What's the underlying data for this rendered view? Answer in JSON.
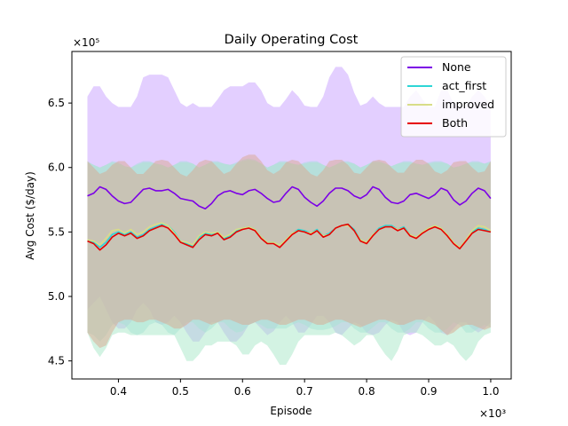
{
  "chart_data": {
    "type": "line",
    "title": "Daily Operating Cost",
    "xlabel": "Episode",
    "ylabel": "Avg Cost ($/day)",
    "x_multiplier_label": "×10³",
    "y_multiplier_label": "×10⁵",
    "xlim": [
      0.325,
      1.033
    ],
    "ylim": [
      4.36,
      6.9
    ],
    "x_ticks": [
      0.4,
      0.5,
      0.6,
      0.7,
      0.8,
      0.9,
      1.0
    ],
    "x_tick_labels": [
      "0.4",
      "0.5",
      "0.6",
      "0.7",
      "0.8",
      "0.9",
      "1.0"
    ],
    "y_ticks": [
      4.5,
      5.0,
      5.5,
      6.0,
      6.5
    ],
    "y_tick_labels": [
      "4.5",
      "5.0",
      "5.5",
      "6.0",
      "6.5"
    ],
    "legend_position": "top-right",
    "x": [
      0.35,
      0.36,
      0.37,
      0.38,
      0.39,
      0.4,
      0.41,
      0.42,
      0.43,
      0.44,
      0.45,
      0.46,
      0.47,
      0.48,
      0.49,
      0.5,
      0.51,
      0.52,
      0.53,
      0.54,
      0.55,
      0.56,
      0.57,
      0.58,
      0.59,
      0.6,
      0.61,
      0.62,
      0.63,
      0.64,
      0.65,
      0.66,
      0.67,
      0.68,
      0.69,
      0.7,
      0.71,
      0.72,
      0.73,
      0.74,
      0.75,
      0.76,
      0.77,
      0.78,
      0.79,
      0.8,
      0.81,
      0.82,
      0.83,
      0.84,
      0.85,
      0.86,
      0.87,
      0.88,
      0.89,
      0.9,
      0.91,
      0.92,
      0.93,
      0.94,
      0.95,
      0.96,
      0.97,
      0.98,
      0.99,
      1.0
    ],
    "series": [
      {
        "name": "None",
        "color": "#7b00e6",
        "fill": "#c8a0ff",
        "values": [
          5.78,
          5.8,
          5.85,
          5.83,
          5.78,
          5.74,
          5.72,
          5.73,
          5.78,
          5.83,
          5.84,
          5.82,
          5.82,
          5.83,
          5.8,
          5.76,
          5.75,
          5.74,
          5.7,
          5.68,
          5.72,
          5.78,
          5.81,
          5.82,
          5.8,
          5.79,
          5.82,
          5.83,
          5.8,
          5.76,
          5.73,
          5.74,
          5.8,
          5.85,
          5.83,
          5.77,
          5.73,
          5.7,
          5.74,
          5.8,
          5.84,
          5.84,
          5.82,
          5.78,
          5.76,
          5.79,
          5.85,
          5.83,
          5.77,
          5.73,
          5.72,
          5.74,
          5.79,
          5.8,
          5.78,
          5.76,
          5.79,
          5.84,
          5.82,
          5.75,
          5.71,
          5.74,
          5.8,
          5.84,
          5.82,
          5.76
        ],
        "upper": [
          6.55,
          6.63,
          6.63,
          6.55,
          6.5,
          6.47,
          6.47,
          6.47,
          6.55,
          6.7,
          6.72,
          6.72,
          6.72,
          6.7,
          6.6,
          6.5,
          6.47,
          6.5,
          6.47,
          6.47,
          6.47,
          6.53,
          6.6,
          6.63,
          6.63,
          6.63,
          6.66,
          6.66,
          6.6,
          6.5,
          6.47,
          6.47,
          6.53,
          6.6,
          6.55,
          6.48,
          6.47,
          6.47,
          6.55,
          6.7,
          6.78,
          6.78,
          6.72,
          6.58,
          6.48,
          6.5,
          6.55,
          6.5,
          6.47,
          6.47,
          6.47,
          6.47,
          6.55,
          6.6,
          6.53,
          6.47,
          6.47,
          6.6,
          6.6,
          6.5,
          6.47,
          6.47,
          6.55,
          6.6,
          6.55,
          6.47
        ],
        "lower": [
          4.9,
          4.95,
          5.0,
          4.9,
          4.8,
          4.75,
          4.75,
          4.8,
          4.9,
          4.95,
          4.9,
          4.8,
          4.78,
          4.8,
          4.85,
          4.8,
          4.72,
          4.65,
          4.65,
          4.72,
          4.8,
          4.8,
          4.72,
          4.65,
          4.65,
          4.7,
          4.78,
          4.8,
          4.75,
          4.7,
          4.73,
          4.8,
          4.85,
          4.8,
          4.72,
          4.72,
          4.78,
          4.85,
          4.85,
          4.8,
          4.72,
          4.7,
          4.75,
          4.8,
          4.78,
          4.72,
          4.7,
          4.72,
          4.78,
          4.82,
          4.8,
          4.72,
          4.7,
          4.72,
          4.8,
          4.85,
          4.8,
          4.72,
          4.7,
          4.75,
          4.8,
          4.8,
          4.75,
          4.72,
          4.75,
          4.8
        ]
      },
      {
        "name": "act_first",
        "color": "#2ed6d6",
        "fill": "#a6dede",
        "values": [
          5.43,
          5.42,
          5.38,
          5.42,
          5.48,
          5.5,
          5.48,
          5.5,
          5.46,
          5.48,
          5.52,
          5.54,
          5.56,
          5.55,
          5.5,
          5.43,
          5.41,
          5.39,
          5.46,
          5.49,
          5.48,
          5.5,
          5.45,
          5.47,
          5.51,
          5.53,
          5.54,
          5.52,
          5.46,
          5.42,
          5.42,
          5.4,
          5.44,
          5.49,
          5.52,
          5.51,
          5.49,
          5.52,
          5.47,
          5.49,
          5.53,
          5.55,
          5.56,
          5.52,
          5.44,
          5.42,
          5.48,
          5.53,
          5.55,
          5.55,
          5.52,
          5.54,
          5.48,
          5.46,
          5.5,
          5.53,
          5.55,
          5.53,
          5.48,
          5.42,
          5.38,
          5.44,
          5.5,
          5.53,
          5.52,
          5.5
        ],
        "upper": [
          6.05,
          6.02,
          6.0,
          6.02,
          6.05,
          6.04,
          6.01,
          6.0,
          6.03,
          6.05,
          6.05,
          6.03,
          6.02,
          6.0,
          6.02,
          6.05,
          6.05,
          6.03,
          6.0,
          6.02,
          6.05,
          6.05,
          6.03,
          6.02,
          6.04,
          6.06,
          6.07,
          6.06,
          6.03,
          6.0,
          6.02,
          6.05,
          6.05,
          6.03,
          6.02,
          6.04,
          6.05,
          6.05,
          6.02,
          6.0,
          6.02,
          6.05,
          6.05,
          6.03,
          6.0,
          6.02,
          6.05,
          6.05,
          6.03,
          6.01,
          6.03,
          6.05,
          6.05,
          6.03,
          6.02,
          6.04,
          6.05,
          6.05,
          6.03,
          6.0,
          6.01,
          6.03,
          6.05,
          6.05,
          6.03,
          6.05
        ],
        "lower": [
          4.72,
          4.7,
          4.65,
          4.7,
          4.78,
          4.8,
          4.78,
          4.72,
          4.7,
          4.72,
          4.78,
          4.8,
          4.78,
          4.72,
          4.7,
          4.75,
          4.8,
          4.8,
          4.75,
          4.72,
          4.75,
          4.8,
          4.8,
          4.75,
          4.72,
          4.73,
          4.78,
          4.8,
          4.78,
          4.75,
          4.75,
          4.75,
          4.75,
          4.78,
          4.8,
          4.78,
          4.75,
          4.74,
          4.74,
          4.75,
          4.77,
          4.8,
          4.8,
          4.75,
          4.72,
          4.72,
          4.76,
          4.8,
          4.8,
          4.75,
          4.72,
          4.72,
          4.75,
          4.8,
          4.8,
          4.75,
          4.72,
          4.72,
          4.75,
          4.8,
          4.78,
          4.72,
          4.72,
          4.75,
          4.78,
          4.76
        ]
      },
      {
        "name": "improved",
        "color": "#d8dd88",
        "fill": "#a8e8c8",
        "values": [
          5.44,
          5.43,
          5.4,
          5.45,
          5.51,
          5.52,
          5.49,
          5.52,
          5.48,
          5.5,
          5.54,
          5.56,
          5.57,
          5.55,
          5.49,
          5.43,
          5.42,
          5.4,
          5.47,
          5.5,
          5.49,
          5.5,
          5.46,
          5.48,
          5.52,
          5.53,
          5.54,
          5.52,
          5.46,
          5.42,
          5.42,
          5.4,
          5.44,
          5.49,
          5.51,
          5.5,
          5.49,
          5.51,
          5.47,
          5.48,
          5.53,
          5.55,
          5.55,
          5.51,
          5.44,
          5.42,
          5.48,
          5.52,
          5.54,
          5.54,
          5.52,
          5.53,
          5.48,
          5.46,
          5.5,
          5.53,
          5.55,
          5.53,
          5.48,
          5.42,
          5.38,
          5.44,
          5.51,
          5.55,
          5.54,
          5.51
        ],
        "upper": [
          6.04,
          6.02,
          6.0,
          6.02,
          6.04,
          6.03,
          6.01,
          6.0,
          6.02,
          6.04,
          6.04,
          6.03,
          6.02,
          6.0,
          6.02,
          6.04,
          6.04,
          6.03,
          6.0,
          6.02,
          6.04,
          6.04,
          6.03,
          6.02,
          6.03,
          6.05,
          6.06,
          6.05,
          6.03,
          6.0,
          6.02,
          6.04,
          6.04,
          6.03,
          6.02,
          6.03,
          6.04,
          6.04,
          6.02,
          6.0,
          6.02,
          6.04,
          6.04,
          6.03,
          6.0,
          6.02,
          6.04,
          6.04,
          6.03,
          6.01,
          6.03,
          6.04,
          6.04,
          6.03,
          6.02,
          6.03,
          6.04,
          6.04,
          6.03,
          6.0,
          6.01,
          6.03,
          6.04,
          6.04,
          6.03,
          6.04
        ],
        "lower": [
          4.72,
          4.6,
          4.53,
          4.6,
          4.7,
          4.72,
          4.72,
          4.7,
          4.7,
          4.7,
          4.7,
          4.7,
          4.7,
          4.7,
          4.7,
          4.6,
          4.5,
          4.5,
          4.55,
          4.62,
          4.62,
          4.65,
          4.65,
          4.65,
          4.62,
          4.55,
          4.55,
          4.62,
          4.65,
          4.62,
          4.55,
          4.47,
          4.47,
          4.55,
          4.65,
          4.7,
          4.7,
          4.7,
          4.7,
          4.7,
          4.72,
          4.7,
          4.66,
          4.62,
          4.65,
          4.7,
          4.7,
          4.62,
          4.55,
          4.5,
          4.58,
          4.7,
          4.72,
          4.72,
          4.7,
          4.66,
          4.62,
          4.62,
          4.65,
          4.62,
          4.55,
          4.5,
          4.55,
          4.65,
          4.7,
          4.72
        ]
      },
      {
        "name": "Both",
        "color": "#e60000",
        "fill": "#d9a890",
        "values": [
          5.43,
          5.41,
          5.36,
          5.4,
          5.46,
          5.49,
          5.47,
          5.49,
          5.45,
          5.47,
          5.51,
          5.53,
          5.55,
          5.53,
          5.48,
          5.42,
          5.4,
          5.38,
          5.44,
          5.48,
          5.47,
          5.49,
          5.44,
          5.46,
          5.5,
          5.52,
          5.53,
          5.51,
          5.45,
          5.41,
          5.41,
          5.38,
          5.43,
          5.48,
          5.51,
          5.5,
          5.48,
          5.51,
          5.46,
          5.48,
          5.53,
          5.55,
          5.56,
          5.51,
          5.43,
          5.41,
          5.47,
          5.52,
          5.54,
          5.54,
          5.51,
          5.53,
          5.47,
          5.45,
          5.49,
          5.52,
          5.54,
          5.52,
          5.47,
          5.41,
          5.37,
          5.43,
          5.49,
          5.52,
          5.51,
          5.5
        ],
        "upper": [
          6.05,
          6.0,
          5.95,
          5.97,
          6.02,
          6.05,
          6.05,
          6.0,
          5.95,
          5.95,
          6.0,
          6.05,
          6.06,
          6.05,
          6.0,
          5.95,
          5.93,
          5.98,
          6.04,
          6.06,
          6.05,
          6.0,
          5.95,
          5.97,
          6.03,
          6.08,
          6.1,
          6.1,
          6.05,
          5.98,
          5.95,
          5.98,
          6.04,
          6.06,
          6.05,
          6.0,
          5.95,
          5.93,
          5.98,
          6.05,
          6.06,
          6.06,
          6.02,
          5.96,
          5.95,
          6.0,
          6.05,
          6.06,
          6.05,
          6.0,
          5.96,
          5.96,
          6.02,
          6.06,
          6.06,
          6.03,
          5.97,
          5.95,
          5.98,
          6.04,
          6.05,
          6.05,
          6.0,
          5.96,
          5.97,
          6.05
        ],
        "lower": [
          4.72,
          4.65,
          4.6,
          4.62,
          4.72,
          4.8,
          4.82,
          4.82,
          4.8,
          4.8,
          4.82,
          4.82,
          4.8,
          4.78,
          4.75,
          4.75,
          4.78,
          4.82,
          4.82,
          4.8,
          4.78,
          4.8,
          4.82,
          4.82,
          4.8,
          4.78,
          4.78,
          4.8,
          4.82,
          4.82,
          4.8,
          4.78,
          4.78,
          4.8,
          4.82,
          4.82,
          4.8,
          4.78,
          4.78,
          4.8,
          4.82,
          4.82,
          4.8,
          4.78,
          4.76,
          4.78,
          4.8,
          4.82,
          4.82,
          4.8,
          4.78,
          4.78,
          4.8,
          4.82,
          4.82,
          4.8,
          4.78,
          4.74,
          4.7,
          4.72,
          4.76,
          4.78,
          4.78,
          4.76,
          4.74,
          4.76
        ]
      }
    ]
  }
}
